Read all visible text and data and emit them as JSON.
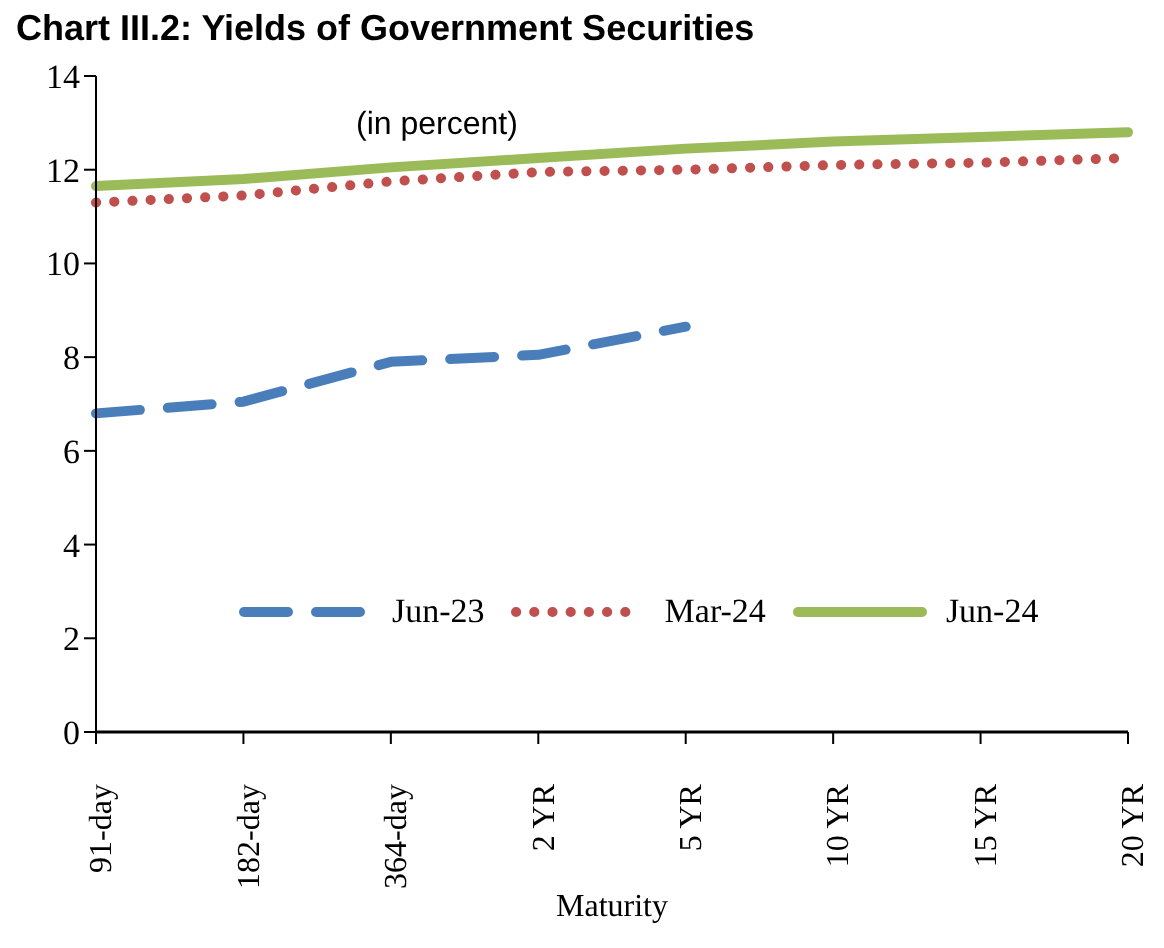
{
  "chart_data": {
    "type": "line",
    "title": "Chart III.2: Yields of Government Securities",
    "subtitle": "(in percent)",
    "xlabel": "Maturity",
    "categories": [
      "91-day",
      "182-day",
      "364-day",
      "2 YR",
      "5 YR",
      "10 YR",
      "15 YR",
      "20 YR"
    ],
    "series": [
      {
        "name": "Jun-23",
        "color": "#4a7ebb",
        "line_style": "dashed",
        "values": [
          6.8,
          7.05,
          7.9,
          8.05,
          8.65,
          null,
          null,
          null
        ]
      },
      {
        "name": "Mar-24",
        "color": "#c0504d",
        "line_style": "dotted",
        "values": [
          11.3,
          11.45,
          11.75,
          11.95,
          12.0,
          12.1,
          12.15,
          12.25
        ]
      },
      {
        "name": "Jun-24",
        "color": "#9bbb59",
        "line_style": "solid",
        "values": [
          11.65,
          11.8,
          12.05,
          12.25,
          12.45,
          12.6,
          12.7,
          12.8
        ]
      }
    ],
    "ylim": [
      0,
      14
    ],
    "yticks": [
      0,
      2,
      4,
      6,
      8,
      10,
      12,
      14
    ],
    "grid": false,
    "legend": "bottom",
    "marker": "none"
  }
}
